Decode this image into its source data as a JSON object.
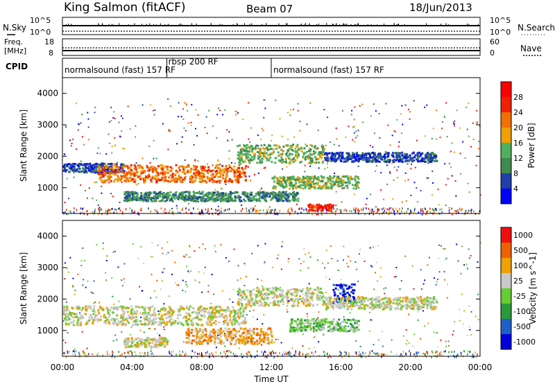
{
  "header": {
    "station": "King Salmon (fitACF)",
    "beam": "Beam 07",
    "date": "18/Jun/2013"
  },
  "chart_data": [
    {
      "type": "line",
      "panel": "noise",
      "left_label": "N.Sky",
      "right_label": "N.Search",
      "left_ticks": [
        "10^5",
        "10^0"
      ],
      "right_ticks": [
        "10^5",
        "10^0"
      ]
    },
    {
      "type": "line",
      "panel": "frequency",
      "left_label_1": "Freq.",
      "left_label_2": "[MHz]",
      "right_label": "Nave",
      "left_ticks": [
        "18",
        "8"
      ],
      "right_ticks": [
        "60",
        "0"
      ]
    },
    {
      "type": "table",
      "panel": "cpid",
      "label": "CPID",
      "segments": [
        {
          "start": 0,
          "end": 6,
          "name": "normalsound (fast) 157 RF"
        },
        {
          "start": 6,
          "end": 12,
          "name": "rbsp 200 RF"
        },
        {
          "start": 12,
          "end": 24,
          "name": "normalsound (fast) 157 RF"
        }
      ]
    },
    {
      "type": "heatmap",
      "panel": "power",
      "ylabel": "Slant Range [km]",
      "ylim": [
        180,
        4500
      ],
      "yticks": [
        1000,
        2000,
        3000,
        4000
      ],
      "colorbar_label": "Power [dB]",
      "colorbar_range": [
        0,
        32
      ],
      "colorbar_ticks": [
        "4",
        "8",
        "12",
        "16",
        "20",
        "24",
        "28"
      ],
      "colors": [
        "#0000ff",
        "#2040a8",
        "#3f8a4e",
        "#4fb060",
        "#f0a000",
        "#f07000",
        "#f02000",
        "#ff0000"
      ],
      "echo_bands": [
        {
          "t0": 0.0,
          "t1": 3.5,
          "r_lo": 1500,
          "r_hi": 1800,
          "level": 1
        },
        {
          "t0": 2.0,
          "t1": 10.5,
          "r_lo": 1200,
          "r_hi": 1750,
          "level": 5
        },
        {
          "t0": 10.0,
          "t1": 15.0,
          "r_lo": 1800,
          "r_hi": 2400,
          "level": 3
        },
        {
          "t0": 15.0,
          "t1": 21.5,
          "r_lo": 1850,
          "r_hi": 2150,
          "level": 1
        },
        {
          "t0": 12.0,
          "t1": 17.0,
          "r_lo": 1000,
          "r_hi": 1400,
          "level": 3
        },
        {
          "t0": 3.5,
          "t1": 13.5,
          "r_lo": 600,
          "r_hi": 900,
          "level": 2
        },
        {
          "t0": 14.0,
          "t1": 15.5,
          "r_lo": 300,
          "r_hi": 500,
          "level": 6
        }
      ]
    },
    {
      "type": "heatmap",
      "panel": "velocity",
      "ylabel": "Slant Range [km]",
      "ylim": [
        180,
        4500
      ],
      "yticks": [
        1000,
        2000,
        3000,
        4000
      ],
      "colorbar_label": "Velocity [m s^-1]",
      "colorbar_ticks": [
        "1000",
        "500",
        "100",
        "25",
        "-25",
        "-100",
        "-500",
        "-1000"
      ],
      "colors": [
        "#0000dd",
        "#1f60c8",
        "#2a9a3a",
        "#66cc33",
        "#c8c8c8",
        "#f0a000",
        "#f06000",
        "#ee1010"
      ],
      "echo_bands": [
        {
          "t0": 0.0,
          "t1": 10.5,
          "r_lo": 1200,
          "r_hi": 1800,
          "level": 4
        },
        {
          "t0": 10.0,
          "t1": 15.0,
          "r_lo": 1800,
          "r_hi": 2400,
          "level": 4
        },
        {
          "t0": 7.0,
          "t1": 12.0,
          "r_lo": 600,
          "r_hi": 1100,
          "level": 5
        },
        {
          "t0": 13.0,
          "t1": 17.0,
          "r_lo": 1000,
          "r_hi": 1400,
          "level": 3
        },
        {
          "t0": 15.5,
          "t1": 16.8,
          "r_lo": 1900,
          "r_hi": 2500,
          "level": 0
        },
        {
          "t0": 15.0,
          "t1": 21.5,
          "r_lo": 1700,
          "r_hi": 2100,
          "level": 4
        },
        {
          "t0": 3.5,
          "t1": 6.0,
          "r_lo": 500,
          "r_hi": 800,
          "level": 4
        }
      ]
    }
  ],
  "xaxis": {
    "label": "Time UT",
    "xlim": [
      0,
      24
    ],
    "tick_labels": [
      "00:00",
      "04:00",
      "08:00",
      "12:00",
      "16:00",
      "20:00",
      "00:00"
    ]
  }
}
